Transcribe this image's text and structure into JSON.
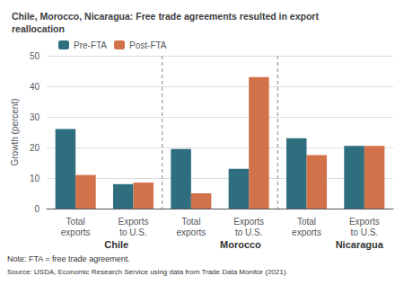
{
  "chart_data": {
    "type": "bar",
    "title": "Chile, Morocco, Nicaragua: Free trade agreements resulted in export\nreallocation",
    "y_label": "Growth (percent)",
    "categories": [
      "Total\nexports",
      "Exports\nto U.S.",
      "Total\nexports",
      "Exports\nto U.S.",
      "Total\nexports",
      "Exports\nto U.S."
    ],
    "annotations": [
      "Chile",
      "Morocco",
      "Nicaragua"
    ],
    "series": [
      {
        "name": "Pre-FTA",
        "color": "#2e6e7e",
        "values": [
          26,
          8,
          19.5,
          13,
          23,
          20.5
        ]
      },
      {
        "name": "Post-FTA",
        "color": "#d2724a",
        "values": [
          11,
          8.5,
          5,
          43,
          17.5,
          20.5
        ]
      }
    ],
    "ylim": [
      0,
      50
    ],
    "yticks": [
      0,
      10,
      20,
      30,
      40,
      50
    ],
    "grid": true,
    "legend": "upper left",
    "note": "Note: FTA = free trade agreement.",
    "source": "Source: USDA, Economic Research Service using data from Trade Data Monitor (2021)."
  }
}
